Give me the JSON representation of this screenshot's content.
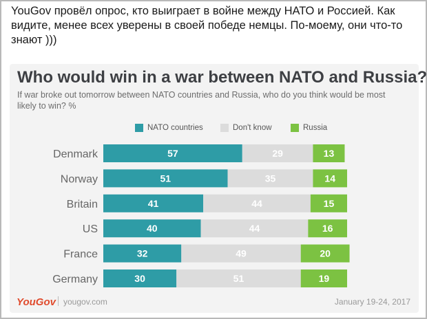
{
  "post": {
    "text": "YouGov провёл опрос, кто выиграет в войне между НАТО и Россией. Как видите, менее всех уверены в своей победе немцы. По-моему, они что-то знают )))"
  },
  "colors": {
    "nato": "#2e9ca6",
    "dont_know": "#dcdcdc",
    "russia": "#7cc242",
    "brand": "#e04b2d"
  },
  "chart_data": {
    "type": "bar",
    "orientation": "horizontal",
    "stacked": true,
    "title": "Who would win in a war between NATO and Russia?",
    "subtitle": "If war broke out tomorrow between NATO countries and Russia, who do you think would be most likely to win? %",
    "categories": [
      "Denmark",
      "Norway",
      "Britain",
      "US",
      "France",
      "Germany"
    ],
    "series": [
      {
        "name": "NATO countries",
        "values": [
          57,
          51,
          41,
          40,
          32,
          30
        ]
      },
      {
        "name": "Don't know",
        "values": [
          29,
          35,
          44,
          44,
          49,
          51
        ]
      },
      {
        "name": "Russia",
        "values": [
          13,
          14,
          15,
          16,
          20,
          19
        ]
      }
    ],
    "legend_position": "top",
    "grid": false
  },
  "footer": {
    "logo": "YouGov",
    "url": "yougov.com",
    "date": "January 19-24, 2017"
  }
}
